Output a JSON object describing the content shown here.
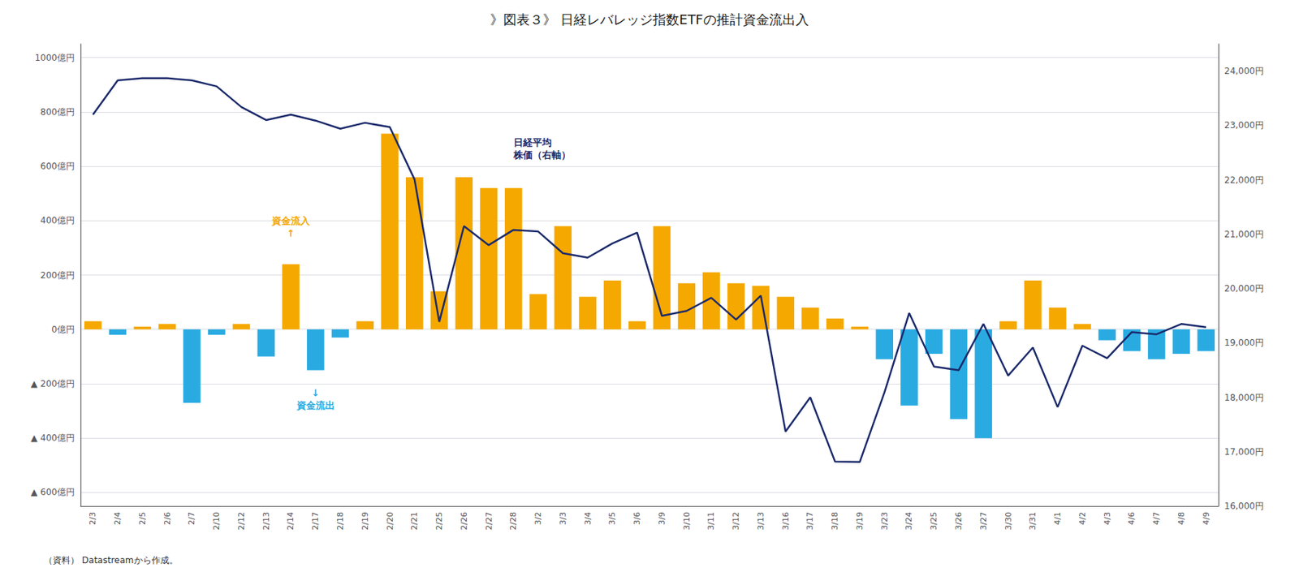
{
  "chart_data": {
    "type": "bar",
    "title": "》図表３》 日経レバレッジ指数ETFの推計資金流出入",
    "source_note": "（資料） Datastreamから作成。",
    "categories": [
      "2/3",
      "2/4",
      "2/5",
      "2/6",
      "2/7",
      "2/10",
      "2/12",
      "2/13",
      "2/14",
      "2/17",
      "2/18",
      "2/19",
      "2/20",
      "2/21",
      "2/25",
      "2/26",
      "2/27",
      "2/28",
      "3/2",
      "3/3",
      "3/4",
      "3/5",
      "3/6",
      "3/9",
      "3/10",
      "3/11",
      "3/12",
      "3/13",
      "3/16",
      "3/17",
      "3/18",
      "3/19",
      "3/23",
      "3/24",
      "3/25",
      "3/26",
      "3/27",
      "3/30",
      "3/31",
      "4/1",
      "4/2",
      "4/3",
      "4/6",
      "4/7",
      "4/8",
      "4/9"
    ],
    "series": [
      {
        "type": "bar",
        "values": [
          30,
          -20,
          10,
          20,
          -270,
          -20,
          20,
          -100,
          240,
          -150,
          -30,
          30,
          720,
          560,
          140,
          560,
          520,
          520,
          130,
          380,
          120,
          180,
          30,
          380,
          170,
          210,
          170,
          160,
          120,
          80,
          40,
          10,
          -110,
          -280,
          -90,
          -330,
          -400,
          30,
          180,
          80,
          20,
          -40,
          -80,
          -110,
          -90,
          -80
        ],
        "colors": [
          "#F5A800",
          "#29ABE2",
          "#F5A800",
          "#F5A800",
          "#29ABE2",
          "#29ABE2",
          "#F5A800",
          "#29ABE2",
          "#F5A800",
          "#29ABE2",
          "#29ABE2",
          "#F5A800",
          "#F5A800",
          "#F5A800",
          "#F5A800",
          "#F5A800",
          "#F5A800",
          "#F5A800",
          "#F5A800",
          "#F5A800",
          "#F5A800",
          "#F5A800",
          "#F5A800",
          "#F5A800",
          "#F5A800",
          "#F5A800",
          "#F5A800",
          "#F5A800",
          "#F5A800",
          "#F5A800",
          "#F5A800",
          "#F5A800",
          "#29ABE2",
          "#29ABE2",
          "#29ABE2",
          "#29ABE2",
          "#29ABE2",
          "#F5A800",
          "#F5A800",
          "#F5A800",
          "#F5A800",
          "#29ABE2",
          "#29ABE2",
          "#29ABE2",
          "#29ABE2",
          "#29ABE2"
        ]
      },
      {
        "type": "line",
        "axis": "y2",
        "color": "#1B2A6B",
        "values": [
          23200,
          23830,
          23870,
          23870,
          23830,
          23720,
          23340,
          23100,
          23200,
          23090,
          22940,
          23050,
          22970,
          22010,
          19390,
          21150,
          20800,
          21080,
          21050,
          20650,
          20570,
          20830,
          21030,
          19500,
          19590,
          19830,
          19430,
          19870,
          17370,
          18000,
          16820,
          16810,
          18092,
          19550,
          18565,
          18500,
          19350,
          18400,
          18917,
          17820,
          18950,
          18720,
          19200,
          19160,
          19350,
          19290
        ]
      }
    ],
    "ylim": [
      -650,
      1050
    ],
    "yticks": [
      {
        "value": -600,
        "label": "▲ 600億円"
      },
      {
        "value": -400,
        "label": "▲ 400億円"
      },
      {
        "value": -200,
        "label": "▲ 200億円"
      },
      {
        "value": 0,
        "label": "0億円"
      },
      {
        "value": 200,
        "label": "200億円"
      },
      {
        "value": 400,
        "label": "400億円"
      },
      {
        "value": 600,
        "label": "600億円"
      },
      {
        "value": 800,
        "label": "800億円"
      },
      {
        "value": 1000,
        "label": "1000億円"
      }
    ],
    "y2lim": [
      16000,
      24500
    ],
    "y2ticks": [
      {
        "value": 16000,
        "label": "16,000円"
      },
      {
        "value": 17000,
        "label": "17,000円"
      },
      {
        "value": 18000,
        "label": "18,000円"
      },
      {
        "value": 19000,
        "label": "19,000円"
      },
      {
        "value": 20000,
        "label": "20,000円"
      },
      {
        "value": 21000,
        "label": "21,000円"
      },
      {
        "value": 22000,
        "label": "22,000円"
      },
      {
        "value": 23000,
        "label": "23,000円"
      },
      {
        "value": 24000,
        "label": "24,000円"
      }
    ],
    "annotations": [
      {
        "text": "資金流入\n↑",
        "x": "2/14",
        "y": 330,
        "color": "#F5A800"
      },
      {
        "text": "↓\n資金流出",
        "x": "2/17",
        "y": -210,
        "color": "#29ABE2"
      },
      {
        "text": "日経平均\n株価（右軸）",
        "x": "2/28",
        "y": 620,
        "color": "#1B2A6B"
      }
    ],
    "grid": true
  }
}
